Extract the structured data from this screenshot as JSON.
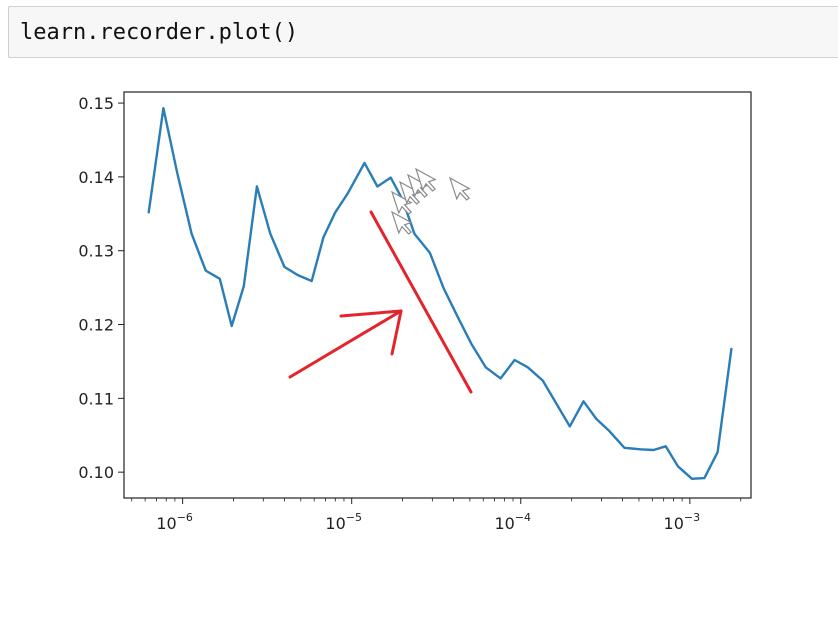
{
  "code_cell": {
    "source": "learn.recorder.plot()"
  },
  "colors": {
    "line": "#2a7db6",
    "axes": "#222222",
    "arrow": "#e3242b",
    "cursor_fill": "#ffffff",
    "cursor_stroke": "#8a8a8a",
    "cell_bg": "#f7f7f7"
  },
  "overlays": {
    "arrow_icon": "red-arrow-icon",
    "slash_icon": "red-slash-icon",
    "cursor_icon": "mouse-cursor-icon"
  },
  "chart_data": {
    "type": "line",
    "title": "",
    "xlabel": "",
    "ylabel": "",
    "xscale": "log",
    "xlim": [
      4.5e-07,
      0.0023
    ],
    "ylim": [
      0.0965,
      0.1515
    ],
    "grid": false,
    "legend": "none",
    "xticks": [
      {
        "value": 1e-06,
        "label": "10",
        "exp": "−6"
      },
      {
        "value": 1e-05,
        "label": "10",
        "exp": "−5"
      },
      {
        "value": 0.0001,
        "label": "10",
        "exp": "−4"
      },
      {
        "value": 0.001,
        "label": "10",
        "exp": "−3"
      }
    ],
    "yticks": [
      {
        "value": 0.1,
        "label": "0.10"
      },
      {
        "value": 0.11,
        "label": "0.11"
      },
      {
        "value": 0.12,
        "label": "0.12"
      },
      {
        "value": 0.13,
        "label": "0.13"
      },
      {
        "value": 0.14,
        "label": "0.14"
      },
      {
        "value": 0.15,
        "label": "0.15"
      }
    ],
    "series": [
      {
        "x": [
          6.3e-07,
          7.7e-07,
          9.3e-07,
          1.13e-06,
          1.37e-06,
          1.66e-06,
          1.95e-06,
          2.3e-06,
          2.75e-06,
          3.3e-06,
          4e-06,
          4.8e-06,
          5.8e-06,
          6.8e-06,
          8e-06,
          9.5e-06,
          1.19e-05,
          1.42e-05,
          1.7e-05,
          2e-05,
          2.35e-05,
          2.9e-05,
          3.5e-05,
          4.2e-05,
          5.1e-05,
          6.2e-05,
          7.6e-05,
          9.2e-05,
          0.00011,
          0.000135,
          0.000195,
          0.000235,
          0.00028,
          0.00033,
          0.00041,
          0.00051,
          0.00061,
          0.00072,
          0.00085,
          0.00103,
          0.00122,
          0.00146,
          0.00176
        ],
        "y": [
          0.1352,
          0.1493,
          0.1405,
          0.1323,
          0.1273,
          0.1262,
          0.1198,
          0.1252,
          0.1387,
          0.1323,
          0.1278,
          0.1267,
          0.1259,
          0.1318,
          0.1352,
          0.1378,
          0.1419,
          0.1387,
          0.1399,
          0.1369,
          0.1323,
          0.1297,
          0.1249,
          0.1212,
          0.1174,
          0.1142,
          0.1127,
          0.1152,
          0.1142,
          0.1124,
          0.1062,
          0.1096,
          0.1072,
          0.1057,
          0.1033,
          0.1031,
          0.103,
          0.1035,
          0.1008,
          0.0991,
          0.0992,
          0.1027,
          0.1167
        ]
      }
    ]
  }
}
